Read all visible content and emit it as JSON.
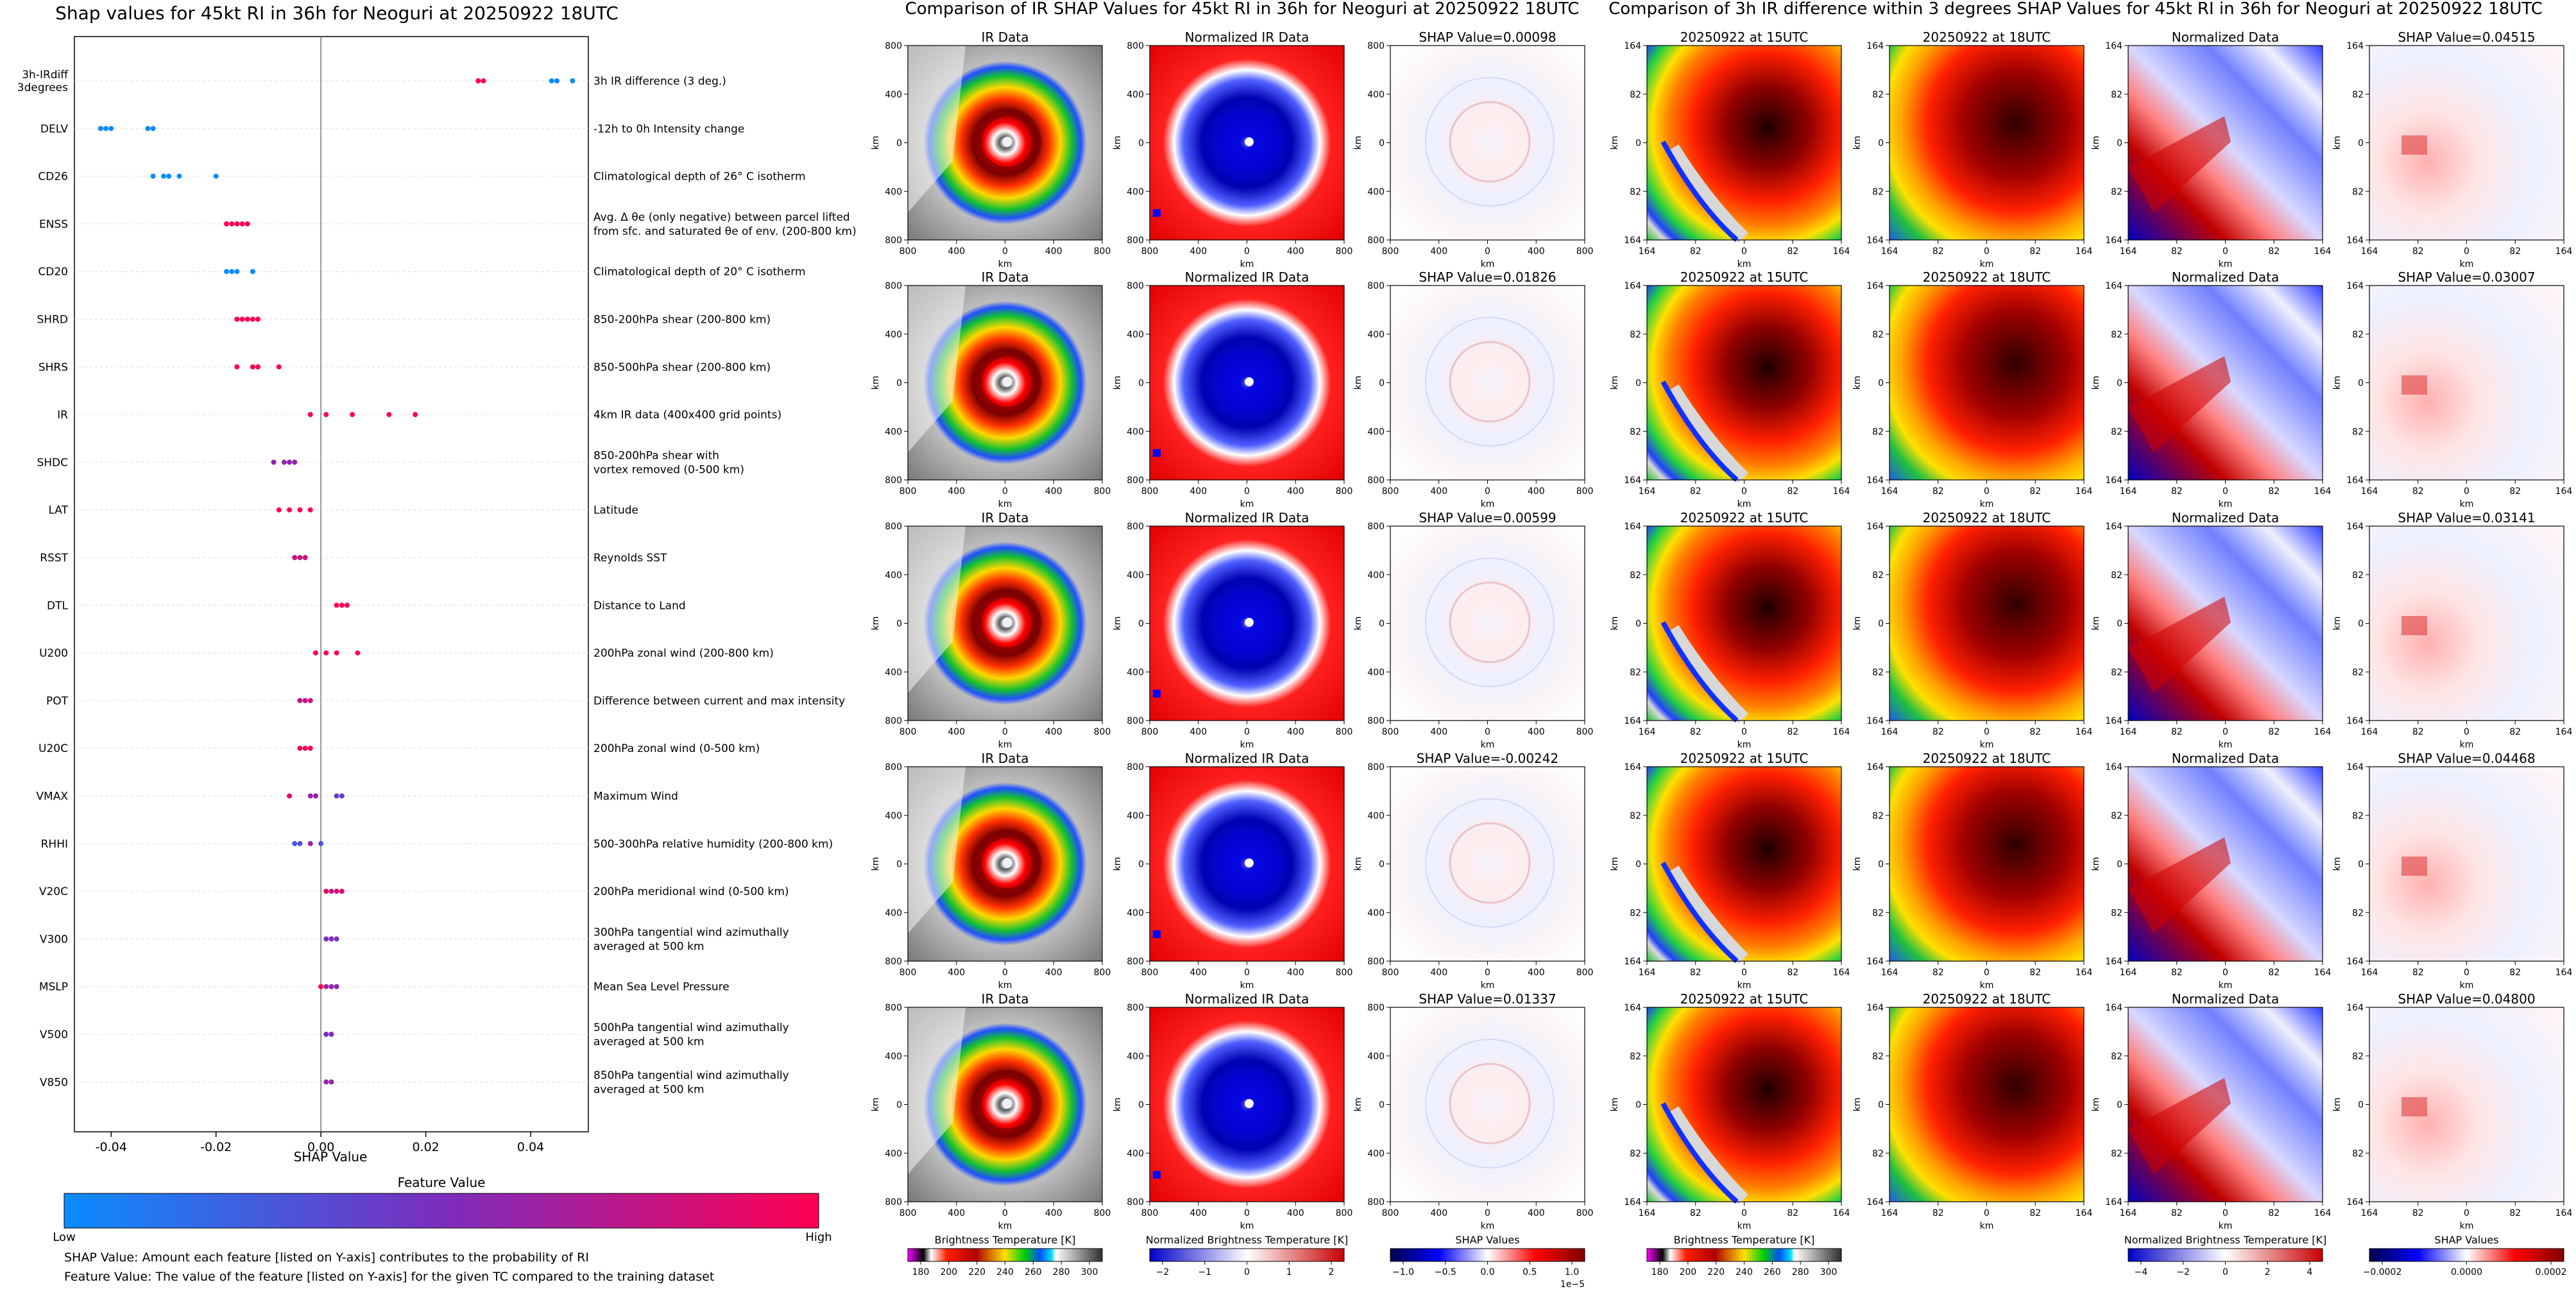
{
  "colors": {
    "feature_low": "#1e88e5",
    "feature_mid": "#7b2dbd",
    "feature_high": "#ff0052",
    "jet": [
      "#2b0040",
      "#a000ff",
      "#2030ff",
      "#00e0ff",
      "#10d040",
      "#ffe000",
      "#ff4000",
      "#a00000",
      "#300000",
      "#808080",
      "#ffffff"
    ]
  },
  "beeswarm": {
    "title": "Shap values for 45kt RI in 36h for Neoguri at 20250922 18UTC",
    "xlabel": "SHAP Value",
    "colorbar_title": "Feature Value",
    "colorbar_low": "Low",
    "colorbar_high": "High",
    "note1": "SHAP Value: Amount each feature [listed on Y-axis] contributes to the probability of RI",
    "note2": "Feature Value: The value of the feature [listed on Y-axis] for the given TC compared to the training dataset"
  },
  "chart_data": [
    {
      "type": "scatter",
      "title": "Shap values for 45kt RI in 36h for Neoguri at 20250922 18UTC",
      "xlabel": "SHAP Value",
      "xlim": [
        -0.047,
        0.051
      ],
      "xticks": [
        "-0.04",
        "-0.02",
        "0.00",
        "0.02",
        "0.04"
      ],
      "xtick_values": [
        -0.04,
        -0.02,
        0.0,
        0.02,
        0.04
      ],
      "features": [
        {
          "name": "3h-IRdiff\n3degrees",
          "desc": "3h IR difference (3 deg.)",
          "shap": [
            0.03,
            0.031,
            0.044,
            0.045,
            0.048
          ],
          "fv": [
            1,
            1,
            0,
            0,
            0
          ]
        },
        {
          "name": "DELV",
          "desc": "-12h to 0h Intensity change",
          "shap": [
            -0.042,
            -0.041,
            -0.04,
            -0.033,
            -0.032
          ],
          "fv": [
            0,
            0,
            0,
            0,
            0
          ]
        },
        {
          "name": "CD26",
          "desc": "Climatological depth of 26° C isotherm",
          "shap": [
            -0.032,
            -0.03,
            -0.029,
            -0.027,
            -0.02
          ],
          "fv": [
            0,
            0,
            0,
            0,
            0
          ]
        },
        {
          "name": "ENSS",
          "desc": "Avg. Δ θe (only negative) between parcel lifted\nfrom sfc. and saturated θe of env. (200-800 km)",
          "shap": [
            -0.018,
            -0.017,
            -0.016,
            -0.015,
            -0.014
          ],
          "fv": [
            1,
            1,
            1,
            1,
            1
          ]
        },
        {
          "name": "CD20",
          "desc": "Climatological depth of 20° C isotherm",
          "shap": [
            -0.018,
            -0.017,
            -0.016,
            -0.013
          ],
          "fv": [
            0,
            0,
            0,
            0
          ]
        },
        {
          "name": "SHRD",
          "desc": "850-200hPa shear (200-800 km)",
          "shap": [
            -0.016,
            -0.015,
            -0.014,
            -0.013,
            -0.012
          ],
          "fv": [
            1,
            1,
            1,
            1,
            1
          ]
        },
        {
          "name": "SHRS",
          "desc": "850-500hPa shear (200-800 km)",
          "shap": [
            -0.016,
            -0.013,
            -0.012,
            -0.008
          ],
          "fv": [
            1,
            1,
            1,
            1
          ]
        },
        {
          "name": "IR",
          "desc": "4km IR data (400x400 grid points)",
          "shap": [
            -0.002,
            0.001,
            0.006,
            0.013,
            0.018
          ],
          "fv": [
            1,
            1,
            1,
            1,
            1
          ]
        },
        {
          "name": "SHDC",
          "desc": "850-200hPa shear with\nvortex removed (0-500 km)",
          "shap": [
            -0.009,
            -0.007,
            -0.006,
            -0.005
          ],
          "fv": [
            0.6,
            0.6,
            0.6,
            0.6
          ]
        },
        {
          "name": "LAT",
          "desc": "Latitude",
          "shap": [
            -0.008,
            -0.006,
            -0.004,
            -0.002
          ],
          "fv": [
            1,
            1,
            1,
            1
          ]
        },
        {
          "name": "RSST",
          "desc": "Reynolds SST",
          "shap": [
            -0.005,
            -0.004,
            -0.003
          ],
          "fv": [
            0.8,
            0.8,
            0.8
          ]
        },
        {
          "name": "DTL",
          "desc": "Distance to Land",
          "shap": [
            0.003,
            0.004,
            0.005
          ],
          "fv": [
            1,
            1,
            1
          ]
        },
        {
          "name": "U200",
          "desc": "200hPa zonal wind (200-800 km)",
          "shap": [
            -0.001,
            0.001,
            0.003,
            0.007
          ],
          "fv": [
            1,
            1,
            1,
            1
          ]
        },
        {
          "name": "POT",
          "desc": "Difference between current and max intensity",
          "shap": [
            -0.004,
            -0.003,
            -0.002
          ],
          "fv": [
            0.8,
            0.8,
            0.8
          ]
        },
        {
          "name": "U20C",
          "desc": "200hPa zonal wind (0-500 km)",
          "shap": [
            -0.004,
            -0.003,
            -0.002
          ],
          "fv": [
            1,
            1,
            1
          ]
        },
        {
          "name": "VMAX",
          "desc": "Maximum Wind",
          "shap": [
            -0.006,
            -0.002,
            -0.001,
            0.003,
            0.004
          ],
          "fv": [
            0.9,
            0.6,
            0.6,
            0.4,
            0.4
          ]
        },
        {
          "name": "RHHI",
          "desc": "500-300hPa relative humidity (200-800 km)",
          "shap": [
            -0.005,
            -0.004,
            -0.002,
            0.0
          ],
          "fv": [
            0.3,
            0.3,
            0.6,
            0.3
          ]
        },
        {
          "name": "V20C",
          "desc": "200hPa meridional wind (0-500 km)",
          "shap": [
            0.001,
            0.002,
            0.003,
            0.004
          ],
          "fv": [
            0.9,
            0.8,
            0.8,
            0.9
          ]
        },
        {
          "name": "V300",
          "desc": "300hPa tangential wind azimuthally\naveraged at 500 km",
          "shap": [
            0.001,
            0.002,
            0.003
          ],
          "fv": [
            0.5,
            0.5,
            0.5
          ]
        },
        {
          "name": "MSLP",
          "desc": "Mean Sea Level Pressure",
          "shap": [
            0.0,
            0.001,
            0.002,
            0.003
          ],
          "fv": [
            1,
            0.6,
            0.6,
            0.6
          ]
        },
        {
          "name": "V500",
          "desc": "500hPa tangential wind azimuthally\naveraged at 500 km",
          "shap": [
            0.001,
            0.002
          ],
          "fv": [
            0.5,
            0.5
          ]
        },
        {
          "name": "V850",
          "desc": "850hPa tangential wind azimuthally\naveraged at 500 km",
          "shap": [
            0.001,
            0.002
          ],
          "fv": [
            0.6,
            0.6
          ]
        }
      ]
    },
    {
      "type": "heatmap",
      "title": "Comparison of IR SHAP Values for 45kt RI in 36h for Neoguri at 20250922 18UTC",
      "column_titles": [
        "IR Data",
        "Normalized IR Data"
      ],
      "shap_titles": [
        "SHAP Value=0.00098",
        "SHAP Value=0.01826",
        "SHAP Value=0.00599",
        "SHAP Value=-0.00242",
        "SHAP Value=0.01337"
      ],
      "shap_values": [
        0.00098,
        0.01826,
        0.00599,
        -0.00242,
        0.01337
      ],
      "axis_label": "km",
      "xticks": [
        "800",
        "400",
        "0",
        "400",
        "800"
      ],
      "yticks": [
        "800",
        "400",
        "0",
        "400",
        "800"
      ],
      "colorbars": [
        {
          "label": "Brightness Temperature [K]",
          "ticks": [
            "180",
            "200",
            "220",
            "240",
            "260",
            "280",
            "300"
          ]
        },
        {
          "label": "Normalized Brightness Temperature [K]",
          "ticks": [
            "−2",
            "−1",
            "0",
            "1",
            "2"
          ]
        },
        {
          "label": "SHAP Values",
          "ticks": [
            "−1.0",
            "−0.5",
            "0.0",
            "0.5",
            "1.0"
          ],
          "offset": "1e−5"
        }
      ]
    },
    {
      "type": "heatmap",
      "title": "Comparison of 3h IR difference within 3 degrees SHAP Values for 45kt RI in 36h for Neoguri at 20250922 18UTC",
      "column_titles": [
        "20250922 at 15UTC",
        "20250922 at 18UTC",
        "Normalized Data"
      ],
      "shap_titles": [
        "SHAP Value=0.04515",
        "SHAP Value=0.03007",
        "SHAP Value=0.03141",
        "SHAP Value=0.04468",
        "SHAP Value=0.04800"
      ],
      "shap_values": [
        0.04515,
        0.03007,
        0.03141,
        0.04468,
        0.048
      ],
      "axis_label": "km",
      "xticks": [
        "164",
        "82",
        "0",
        "82",
        "164"
      ],
      "yticks": [
        "164",
        "82",
        "0",
        "82",
        "164"
      ],
      "colorbars": [
        {
          "label": "Brightness Temperature [K]",
          "ticks": [
            "180",
            "200",
            "220",
            "240",
            "260",
            "280",
            "300"
          ]
        },
        {
          "label": "Normalized Brightness Temperature [K]",
          "ticks": [
            "−4",
            "−2",
            "0",
            "2",
            "4"
          ]
        },
        {
          "label": "SHAP Values",
          "ticks": [
            "−0.0002",
            "0.0000",
            "0.0002"
          ]
        }
      ]
    }
  ]
}
